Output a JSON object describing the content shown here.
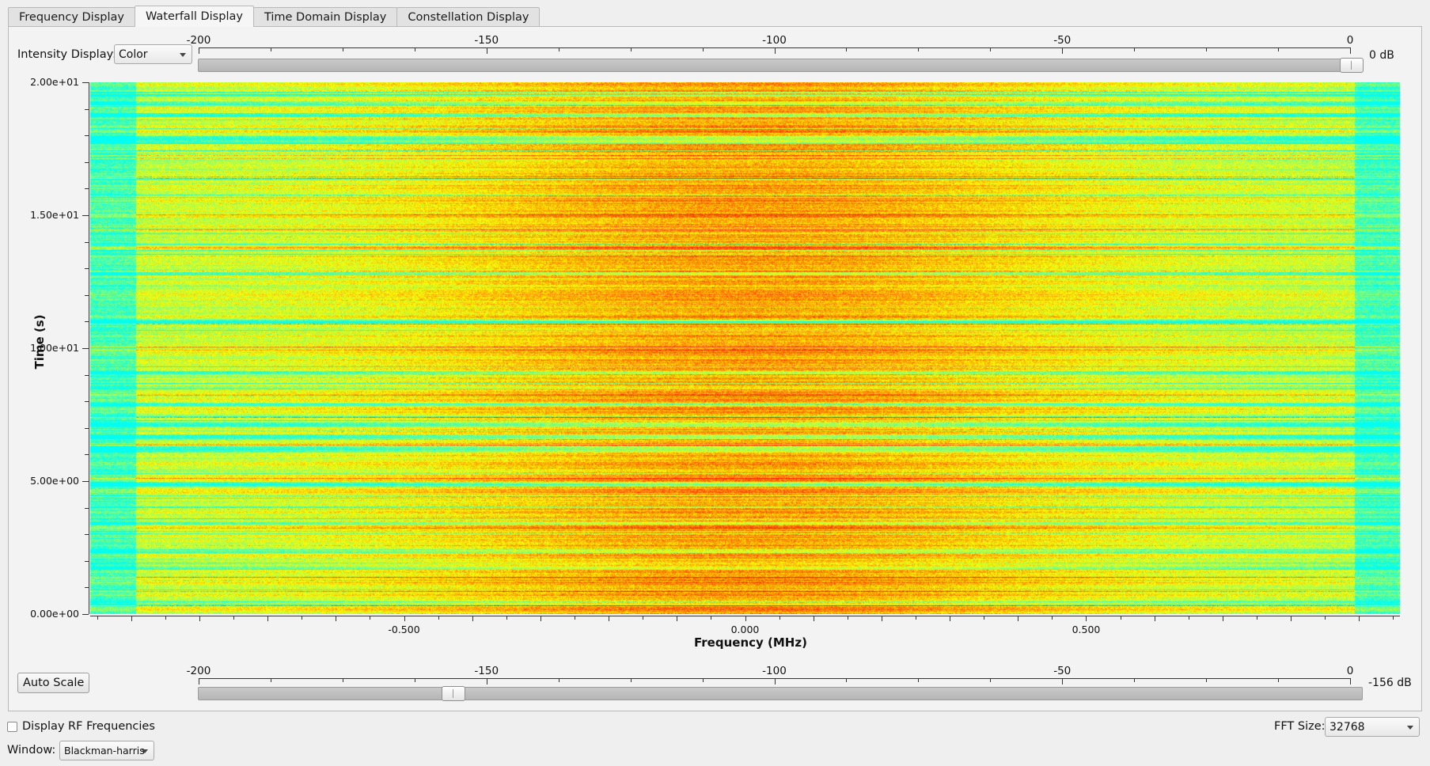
{
  "tabs": [
    {
      "label": "Frequency Display"
    },
    {
      "label": "Waterfall Display"
    },
    {
      "label": "Time Domain Display"
    },
    {
      "label": "Constellation Display"
    }
  ],
  "active_tab": "Waterfall Display",
  "intensity": {
    "label": "Intensity Display:",
    "value": "Color"
  },
  "top_scale": {
    "ticks": [
      "-200",
      "-150",
      "-100",
      "-50",
      "0"
    ],
    "value_label": "0 dB",
    "value": 0
  },
  "bottom_scale": {
    "ticks": [
      "-200",
      "-150",
      "-100",
      "-50",
      "0"
    ],
    "value_label": "-156 dB",
    "value": -156
  },
  "auto_scale_label": "Auto Scale",
  "display_rf": {
    "label": "Display RF Frequencies",
    "checked": false
  },
  "fft": {
    "label": "FFT Size:",
    "value": "32768"
  },
  "window": {
    "label": "Window:",
    "value": "Blackman-harris"
  },
  "chart_data": {
    "type": "heatmap",
    "xlabel": "Frequency (MHz)",
    "ylabel": "Time (s)",
    "x_ticks": [
      "-0.500",
      "0.000",
      "0.500"
    ],
    "y_ticks": [
      "0.00e+00",
      "5.00e+00",
      "1.00e+01",
      "1.50e+01",
      "2.00e+01"
    ],
    "xlim": [
      -0.96,
      0.96
    ],
    "ylim": [
      0,
      20
    ],
    "colormap": [
      "#00ffff",
      "#ffff00",
      "#ff0000"
    ],
    "intensity_range_db": [
      -156,
      0
    ]
  }
}
